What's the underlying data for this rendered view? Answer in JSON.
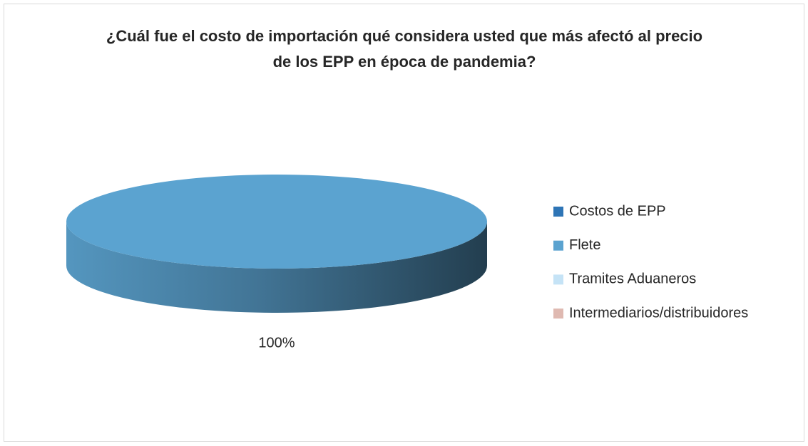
{
  "chart_data": {
    "type": "pie",
    "title": "¿Cuál fue el costo de importación qué considera usted que más afectó al precio de los EPP en época de pandemia?",
    "categories": [
      "Costos de EPP",
      "Flete",
      "Tramites Aduaneros",
      "Intermediarios/distribuidores"
    ],
    "values": [
      0,
      100,
      0,
      0
    ],
    "value_labels": [
      null,
      "100%",
      null,
      null
    ],
    "colors": [
      "#2e75b6",
      "#5ba3d0",
      "#c5e3f6",
      "#dfb9b1"
    ],
    "legend": "right"
  }
}
